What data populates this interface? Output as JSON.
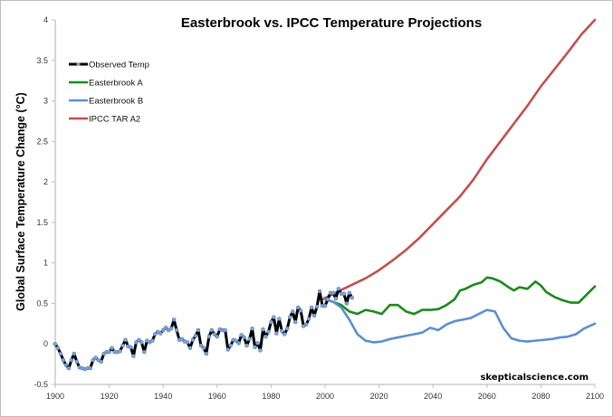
{
  "chart_data": {
    "type": "line",
    "title": "Easterbrook vs. IPCC Temperature Projections",
    "xlabel": "",
    "ylabel": "Global Surface Temperature Change (°C)",
    "xlim": [
      1900,
      2100
    ],
    "ylim": [
      -0.5,
      4
    ],
    "x_ticks": [
      "1900",
      "1920",
      "1940",
      "1960",
      "1980",
      "2000",
      "2020",
      "2040",
      "2060",
      "2080",
      "2100"
    ],
    "y_ticks": [
      "-0.5",
      "0",
      "0.5",
      "1",
      "1.5",
      "2",
      "2.5",
      "3",
      "3.5",
      "4"
    ],
    "grid": false,
    "legend_position": "top-left",
    "watermark": "skepticalscience.com",
    "series": [
      {
        "name": "Observed Temp",
        "color": "#000000",
        "marker_color": "#7ea6dc",
        "x_start": 1900,
        "values": [
          0.0,
          -0.05,
          -0.12,
          -0.2,
          -0.26,
          -0.3,
          -0.2,
          -0.12,
          -0.22,
          -0.29,
          -0.3,
          -0.31,
          -0.3,
          -0.3,
          -0.2,
          -0.17,
          -0.2,
          -0.22,
          -0.12,
          -0.1,
          -0.1,
          -0.05,
          -0.1,
          -0.1,
          -0.09,
          -0.02,
          0.05,
          -0.03,
          -0.04,
          -0.15,
          0.02,
          0.05,
          0.02,
          -0.1,
          0.04,
          0.02,
          0.04,
          0.12,
          0.15,
          0.13,
          0.17,
          0.2,
          0.17,
          0.19,
          0.3,
          0.17,
          0.05,
          0.06,
          0.03,
          0.02,
          -0.05,
          0.05,
          0.1,
          0.17,
          -0.02,
          -0.05,
          -0.12,
          0.09,
          0.17,
          0.12,
          0.09,
          0.18,
          0.17,
          0.17,
          -0.07,
          -0.02,
          0.05,
          0.04,
          0.01,
          0.11,
          0.08,
          -0.02,
          0.06,
          0.19,
          -0.04,
          0.01,
          -0.08,
          0.18,
          0.09,
          0.15,
          0.27,
          0.33,
          0.13,
          0.31,
          0.16,
          0.12,
          0.19,
          0.33,
          0.4,
          0.27,
          0.45,
          0.41,
          0.22,
          0.24,
          0.31,
          0.45,
          0.35,
          0.46,
          0.65,
          0.47,
          0.47,
          0.55,
          0.63,
          0.63,
          0.56,
          0.68,
          0.62,
          0.62,
          0.5,
          0.63,
          0.57
        ]
      },
      {
        "name": "Easterbrook A",
        "color": "#1a8a1a",
        "x": [
          2000,
          2003,
          2006,
          2009,
          2012,
          2015,
          2018,
          2021,
          2024,
          2027,
          2030,
          2033,
          2036,
          2039,
          2042,
          2045,
          2048,
          2050,
          2052,
          2055,
          2058,
          2060,
          2062,
          2065,
          2068,
          2070,
          2072,
          2075,
          2078,
          2080,
          2082,
          2085,
          2088,
          2091,
          2094,
          2097,
          2100
        ],
        "values": [
          0.55,
          0.52,
          0.48,
          0.4,
          0.37,
          0.42,
          0.4,
          0.37,
          0.48,
          0.48,
          0.4,
          0.37,
          0.42,
          0.42,
          0.43,
          0.48,
          0.55,
          0.66,
          0.68,
          0.73,
          0.76,
          0.82,
          0.81,
          0.77,
          0.7,
          0.66,
          0.7,
          0.68,
          0.77,
          0.72,
          0.64,
          0.58,
          0.54,
          0.51,
          0.51,
          0.61,
          0.71
        ]
      },
      {
        "name": "Easterbrook B",
        "color": "#5b8fcf",
        "x": [
          2000,
          2003,
          2006,
          2009,
          2012,
          2015,
          2018,
          2021,
          2024,
          2027,
          2030,
          2033,
          2036,
          2039,
          2042,
          2045,
          2048,
          2051,
          2054,
          2057,
          2060,
          2063,
          2066,
          2069,
          2072,
          2075,
          2078,
          2081,
          2084,
          2087,
          2090,
          2093,
          2096,
          2100
        ],
        "values": [
          0.55,
          0.52,
          0.45,
          0.3,
          0.12,
          0.04,
          0.02,
          0.03,
          0.06,
          0.08,
          0.1,
          0.12,
          0.14,
          0.2,
          0.17,
          0.24,
          0.28,
          0.3,
          0.32,
          0.37,
          0.42,
          0.4,
          0.2,
          0.07,
          0.04,
          0.03,
          0.04,
          0.05,
          0.06,
          0.08,
          0.09,
          0.12,
          0.19,
          0.25
        ]
      },
      {
        "name": "IPCC TAR A2",
        "color": "#c0504d",
        "x": [
          1999,
          2005,
          2010,
          2015,
          2020,
          2025,
          2030,
          2035,
          2040,
          2045,
          2050,
          2055,
          2060,
          2065,
          2070,
          2075,
          2080,
          2085,
          2090,
          2095,
          2100
        ],
        "values": [
          0.55,
          0.65,
          0.73,
          0.81,
          0.91,
          1.03,
          1.16,
          1.31,
          1.48,
          1.65,
          1.82,
          2.03,
          2.28,
          2.5,
          2.72,
          2.94,
          3.18,
          3.39,
          3.6,
          3.82,
          4.0
        ]
      }
    ]
  }
}
